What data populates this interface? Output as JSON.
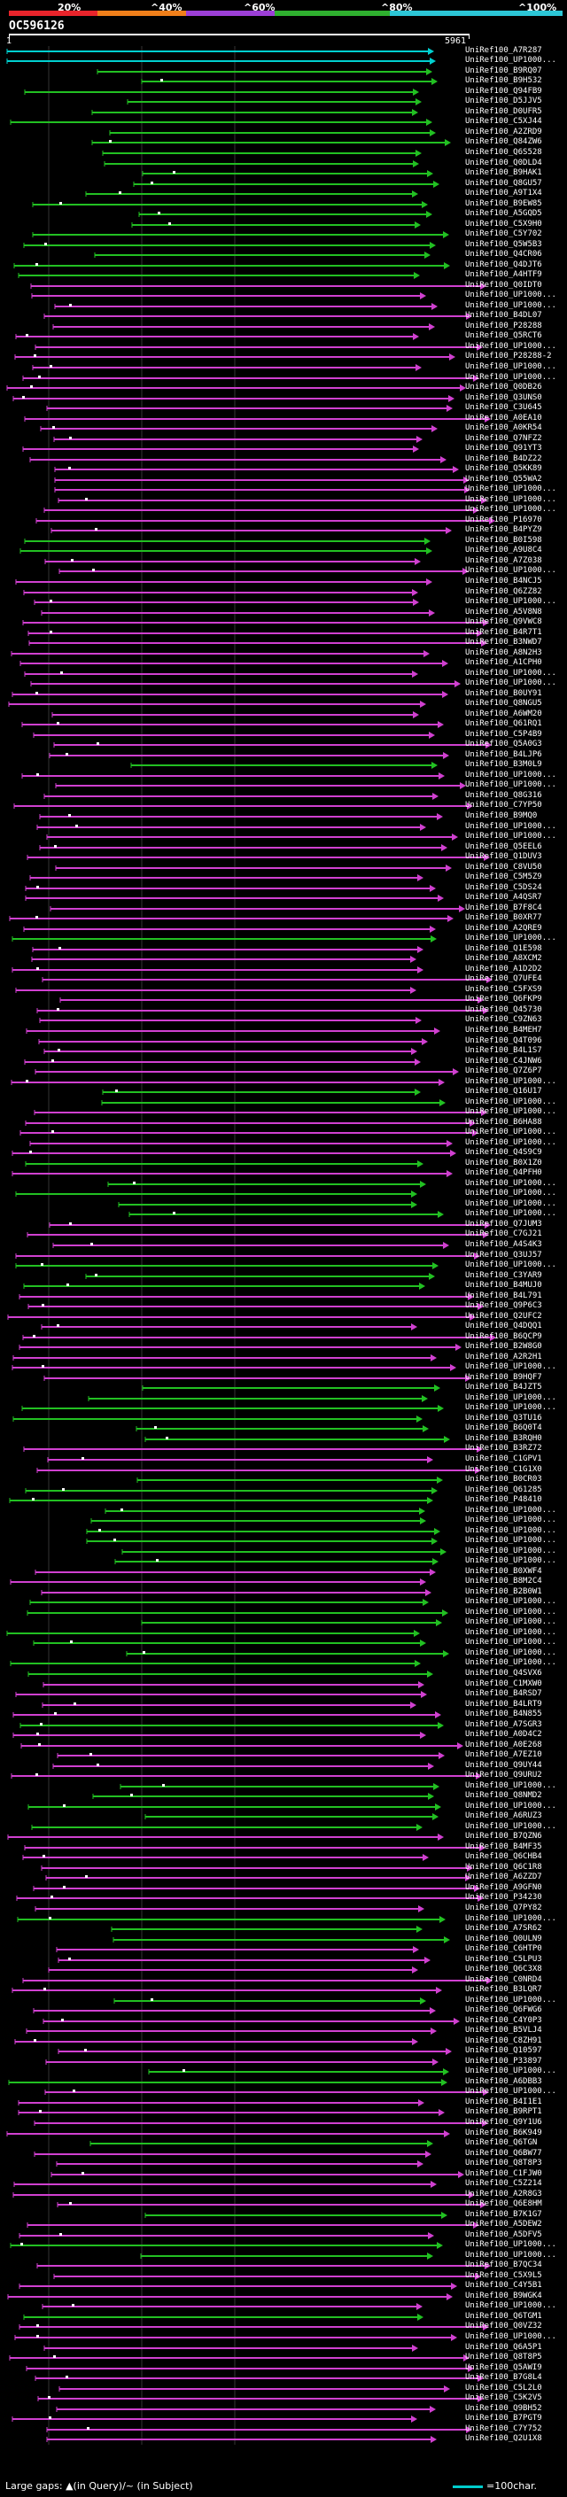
{
  "scale": {
    "labels": [
      "20%",
      "^40%",
      "^60%",
      "^80%",
      "^100%"
    ],
    "colors": [
      "#e8242b",
      "#f07f1a",
      "#9c3fd6",
      "#2fb02f",
      "#2cc6d6"
    ]
  },
  "query": {
    "title": "OC596126",
    "start": "1",
    "end": "5961"
  },
  "legend": {
    "left": "Large gaps: ▲(in Query)/~ (in Subject)",
    "right": "=100char."
  },
  "colors": {
    "cyan": "#00d0d0",
    "green": "#22c022",
    "magenta": "#d040d0",
    "gap": "#ffffff",
    "background": "#000000"
  },
  "hits": [
    {
      "name": "UniRef100_A7R287",
      "color": "cyan"
    },
    {
      "name": "UniRef100_UP1000...",
      "color": "cyan"
    },
    {
      "name": "UniRef100_B9RQ07",
      "color": "green"
    },
    {
      "name": "UniRef100_B9H532",
      "color": "green"
    },
    {
      "name": "UniRef100_Q94FB9",
      "color": "green"
    },
    {
      "name": "UniRef100_D5JJV5",
      "color": "green"
    },
    {
      "name": "UniRef100_D0UFR5",
      "color": "green"
    },
    {
      "name": "UniRef100_C5XJ44",
      "color": "green"
    },
    {
      "name": "UniRef100_A2ZRD9",
      "color": "green"
    },
    {
      "name": "UniRef100_Q84ZW6",
      "color": "green"
    },
    {
      "name": "UniRef100_Q6S528",
      "color": "green"
    },
    {
      "name": "UniRef100_Q0DLD4",
      "color": "green"
    },
    {
      "name": "UniRef100_B9HAK1",
      "color": "green"
    },
    {
      "name": "UniRef100_Q8GU57",
      "color": "green"
    },
    {
      "name": "UniRef100_A9T1X4",
      "color": "green"
    },
    {
      "name": "UniRef100_B9EW85",
      "color": "green"
    },
    {
      "name": "UniRef100_A5GQD5",
      "color": "green"
    },
    {
      "name": "UniRef100_C5X9H0",
      "color": "green"
    },
    {
      "name": "UniRef100_C5Y702",
      "color": "green"
    },
    {
      "name": "UniRef100_Q5W5B3",
      "color": "green"
    },
    {
      "name": "UniRef100_Q4CR06",
      "color": "green"
    },
    {
      "name": "UniRef100_Q4DJT6",
      "color": "green"
    },
    {
      "name": "UniRef100_A4HTF9",
      "color": "green"
    },
    {
      "name": "UniRef100_Q0IDT0",
      "color": "magenta"
    },
    {
      "name": "UniRef100_UP1000...",
      "color": "magenta"
    },
    {
      "name": "UniRef100_UP1000...",
      "color": "magenta"
    },
    {
      "name": "UniRef100_B4DL07",
      "color": "magenta"
    },
    {
      "name": "UniRef100_P28288",
      "color": "magenta"
    },
    {
      "name": "UniRef100_Q5RCT6",
      "color": "magenta"
    },
    {
      "name": "UniRef100_UP1000...",
      "color": "magenta"
    },
    {
      "name": "UniRef100_P28288-2",
      "color": "magenta"
    },
    {
      "name": "UniRef100_UP1000...",
      "color": "magenta"
    },
    {
      "name": "UniRef100_UP1000...",
      "color": "magenta"
    },
    {
      "name": "UniRef100_Q0DB26",
      "color": "magenta"
    },
    {
      "name": "UniRef100_Q3UNS0",
      "color": "magenta"
    },
    {
      "name": "UniRef100_C3U645",
      "color": "magenta"
    },
    {
      "name": "UniRef100_A0EA10",
      "color": "magenta"
    },
    {
      "name": "UniRef100_A0KR54",
      "color": "magenta"
    },
    {
      "name": "UniRef100_Q7NFZ2",
      "color": "magenta"
    },
    {
      "name": "UniRef100_Q91YT3",
      "color": "magenta"
    },
    {
      "name": "UniRef100_B4DZ22",
      "color": "magenta"
    },
    {
      "name": "UniRef100_Q5KK89",
      "color": "magenta"
    },
    {
      "name": "UniRef100_Q55WA2",
      "color": "magenta"
    },
    {
      "name": "UniRef100_UP1000...",
      "color": "magenta"
    },
    {
      "name": "UniRef100_UP1000...",
      "color": "magenta"
    },
    {
      "name": "UniRef100_UP1000...",
      "color": "magenta"
    },
    {
      "name": "UniRef100_P16970",
      "color": "magenta"
    },
    {
      "name": "UniRef100_B4PYZ9",
      "color": "magenta"
    },
    {
      "name": "UniRef100_B0I598",
      "color": "green"
    },
    {
      "name": "UniRef100_A9U8C4",
      "color": "green"
    },
    {
      "name": "UniRef100_A7Z038",
      "color": "magenta"
    },
    {
      "name": "UniRef100_UP1000...",
      "color": "magenta"
    },
    {
      "name": "UniRef100_B4NCJ5",
      "color": "magenta"
    },
    {
      "name": "UniRef100_Q6ZZ82",
      "color": "magenta"
    },
    {
      "name": "UniRef100_UP1000...",
      "color": "magenta"
    },
    {
      "name": "UniRef100_A5V8N8",
      "color": "magenta"
    },
    {
      "name": "UniRef100_Q9VWC8",
      "color": "magenta"
    },
    {
      "name": "UniRef100_B4R7T1",
      "color": "magenta"
    },
    {
      "name": "UniRef100_B3NWD7",
      "color": "magenta"
    },
    {
      "name": "UniRef100_A8N2H3",
      "color": "magenta"
    },
    {
      "name": "UniRef100_A1CPH0",
      "color": "magenta"
    },
    {
      "name": "UniRef100_UP1000...",
      "color": "magenta"
    },
    {
      "name": "UniRef100_UP1000...",
      "color": "magenta"
    },
    {
      "name": "UniRef100_B0UY91",
      "color": "magenta"
    },
    {
      "name": "UniRef100_Q8NGU5",
      "color": "magenta"
    },
    {
      "name": "UniRef100_A6WM20",
      "color": "magenta"
    },
    {
      "name": "UniRef100_Q61RQ1",
      "color": "magenta"
    },
    {
      "name": "UniRef100_C5P4B9",
      "color": "magenta"
    },
    {
      "name": "UniRef100_Q5A0G3",
      "color": "magenta"
    },
    {
      "name": "UniRef100_B4LJP6",
      "color": "magenta"
    },
    {
      "name": "UniRef100_B3M0L9",
      "color": "green"
    },
    {
      "name": "UniRef100_UP1000...",
      "color": "magenta"
    },
    {
      "name": "UniRef100_UP1000...",
      "color": "magenta"
    },
    {
      "name": "UniRef100_Q8G316",
      "color": "magenta"
    },
    {
      "name": "UniRef100_C7YP50",
      "color": "magenta"
    },
    {
      "name": "UniRef100_B9MQ0",
      "color": "magenta"
    },
    {
      "name": "UniRef100_UP1000...",
      "color": "magenta"
    },
    {
      "name": "UniRef100_UP1000...",
      "color": "magenta"
    },
    {
      "name": "UniRef100_Q5EEL6",
      "color": "magenta"
    },
    {
      "name": "UniRef100_Q1DUV3",
      "color": "magenta"
    },
    {
      "name": "UniRef100_C8VU50",
      "color": "magenta"
    },
    {
      "name": "UniRef100_C5M5Z9",
      "color": "magenta"
    },
    {
      "name": "UniRef100_C5DS24",
      "color": "magenta"
    },
    {
      "name": "UniRef100_A4QSR7",
      "color": "magenta"
    },
    {
      "name": "UniRef100_B7F8C4",
      "color": "magenta"
    },
    {
      "name": "UniRef100_B0XR77",
      "color": "magenta"
    },
    {
      "name": "UniRef100_A2QRE9",
      "color": "magenta"
    },
    {
      "name": "UniRef100_UP1000...",
      "color": "green"
    },
    {
      "name": "UniRef100_Q1E598",
      "color": "magenta"
    },
    {
      "name": "UniRef100_A8XCM2",
      "color": "magenta"
    },
    {
      "name": "UniRef100_A1D2D2",
      "color": "magenta"
    },
    {
      "name": "UniRef100_Q7UFE4",
      "color": "magenta"
    },
    {
      "name": "UniRef100_C5FXS9",
      "color": "magenta"
    },
    {
      "name": "UniRef100_Q6FKP9",
      "color": "magenta"
    },
    {
      "name": "UniRef100_Q45730",
      "color": "magenta"
    },
    {
      "name": "UniRef100_C9ZN63",
      "color": "magenta"
    },
    {
      "name": "UniRef100_B4MEH7",
      "color": "magenta"
    },
    {
      "name": "UniRef100_Q4T096",
      "color": "magenta"
    },
    {
      "name": "UniRef100_B4L1S7",
      "color": "magenta"
    },
    {
      "name": "UniRef100_C4JNW6",
      "color": "magenta"
    },
    {
      "name": "UniRef100_Q7Z6P7",
      "color": "magenta"
    },
    {
      "name": "UniRef100_UP1000...",
      "color": "magenta"
    },
    {
      "name": "UniRef100_Q16U17",
      "color": "green"
    },
    {
      "name": "UniRef100_UP1000...",
      "color": "green"
    },
    {
      "name": "UniRef100_UP1000...",
      "color": "magenta"
    },
    {
      "name": "UniRef100_B6HA88",
      "color": "magenta"
    },
    {
      "name": "UniRef100_UP1000...",
      "color": "magenta"
    },
    {
      "name": "UniRef100_UP1000...",
      "color": "magenta"
    },
    {
      "name": "UniRef100_Q4S9C9",
      "color": "magenta"
    },
    {
      "name": "UniRef100_B0X1Z0",
      "color": "green"
    },
    {
      "name": "UniRef100_Q4PFH0",
      "color": "magenta"
    },
    {
      "name": "UniRef100_UP1000...",
      "color": "green"
    },
    {
      "name": "UniRef100_UP1000...",
      "color": "green"
    },
    {
      "name": "UniRef100_UP1000...",
      "color": "green"
    },
    {
      "name": "UniRef100_UP1000...",
      "color": "green"
    },
    {
      "name": "UniRef100_Q7JUM3",
      "color": "magenta"
    },
    {
      "name": "UniRef100_C7GJ21",
      "color": "magenta"
    },
    {
      "name": "UniRef100_A4S4K3",
      "color": "magenta"
    },
    {
      "name": "UniRef100_Q3UJ57",
      "color": "magenta"
    },
    {
      "name": "UniRef100_UP1000...",
      "color": "green"
    },
    {
      "name": "UniRef100_C3YAR9",
      "color": "green"
    },
    {
      "name": "UniRef100_B4MUJ0",
      "color": "green"
    },
    {
      "name": "UniRef100_B4L791",
      "color": "magenta"
    },
    {
      "name": "UniRef100_Q9P6C3",
      "color": "magenta"
    },
    {
      "name": "UniRef100_Q2UFC2",
      "color": "magenta"
    },
    {
      "name": "UniRef100_Q4DQQ1",
      "color": "magenta"
    },
    {
      "name": "UniRef100_B6QCP9",
      "color": "magenta"
    },
    {
      "name": "UniRef100_B2W8G0",
      "color": "magenta"
    },
    {
      "name": "UniRef100_A2R2H1",
      "color": "magenta"
    },
    {
      "name": "UniRef100_UP1000...",
      "color": "magenta"
    },
    {
      "name": "UniRef100_B9HQF7",
      "color": "magenta"
    },
    {
      "name": "UniRef100_B4JZT5",
      "color": "green"
    },
    {
      "name": "UniRef100_UP1000...",
      "color": "green"
    },
    {
      "name": "UniRef100_UP1000...",
      "color": "green"
    },
    {
      "name": "UniRef100_Q3TU16",
      "color": "green"
    },
    {
      "name": "UniRef100_B6Q0T4",
      "color": "green"
    },
    {
      "name": "UniRef100_B3RQH0",
      "color": "green"
    },
    {
      "name": "UniRef100_B3RZ72",
      "color": "magenta"
    },
    {
      "name": "UniRef100_C1GPV1",
      "color": "magenta"
    },
    {
      "name": "UniRef100_C1G1X0",
      "color": "magenta"
    },
    {
      "name": "UniRef100_B0CR03",
      "color": "green"
    },
    {
      "name": "UniRef100_Q61285",
      "color": "green"
    },
    {
      "name": "UniRef100_P48410",
      "color": "green"
    },
    {
      "name": "UniRef100_UP1000...",
      "color": "green"
    },
    {
      "name": "UniRef100_UP1000...",
      "color": "green"
    },
    {
      "name": "UniRef100_UP1000...",
      "color": "green"
    },
    {
      "name": "UniRef100_UP1000...",
      "color": "green"
    },
    {
      "name": "UniRef100_UP1000...",
      "color": "green"
    },
    {
      "name": "UniRef100_UP1000...",
      "color": "green"
    },
    {
      "name": "UniRef100_B0XWF4",
      "color": "magenta"
    },
    {
      "name": "UniRef100_B8M2C4",
      "color": "magenta"
    },
    {
      "name": "UniRef100_B2B0W1",
      "color": "magenta"
    },
    {
      "name": "UniRef100_UP1000...",
      "color": "green"
    },
    {
      "name": "UniRef100_UP1000...",
      "color": "green"
    },
    {
      "name": "UniRef100_UP1000...",
      "color": "green"
    },
    {
      "name": "UniRef100_UP1000...",
      "color": "green"
    },
    {
      "name": "UniRef100_UP1000...",
      "color": "green"
    },
    {
      "name": "UniRef100_UP1000...",
      "color": "green"
    },
    {
      "name": "UniRef100_UP1000...",
      "color": "green"
    },
    {
      "name": "UniRef100_Q4SVX6",
      "color": "green"
    },
    {
      "name": "UniRef100_C1MXW0",
      "color": "magenta"
    },
    {
      "name": "UniRef100_B4RSD7",
      "color": "magenta"
    },
    {
      "name": "UniRef100_B4LRT9",
      "color": "magenta"
    },
    {
      "name": "UniRef100_B4N855",
      "color": "magenta"
    },
    {
      "name": "UniRef100_A7SGR3",
      "color": "green"
    },
    {
      "name": "UniRef100_A0D4C2",
      "color": "magenta"
    },
    {
      "name": "UniRef100_A0E268",
      "color": "magenta"
    },
    {
      "name": "UniRef100_A7EZ10",
      "color": "magenta"
    },
    {
      "name": "UniRef100_Q9UY44",
      "color": "magenta"
    },
    {
      "name": "UniRef100_Q9URU2",
      "color": "magenta"
    },
    {
      "name": "UniRef100_UP1000...",
      "color": "green"
    },
    {
      "name": "UniRef100_Q8NMD2",
      "color": "green"
    },
    {
      "name": "UniRef100_UP1000...",
      "color": "green"
    },
    {
      "name": "UniRef100_A6RUZ3",
      "color": "green"
    },
    {
      "name": "UniRef100_UP1000...",
      "color": "green"
    },
    {
      "name": "UniRef100_B7QZN6",
      "color": "magenta"
    },
    {
      "name": "UniRef100_B4MF35",
      "color": "magenta"
    },
    {
      "name": "UniRef100_Q6CHB4",
      "color": "magenta"
    },
    {
      "name": "UniRef100_Q6C1R8",
      "color": "magenta"
    },
    {
      "name": "UniRef100_A6ZZD7",
      "color": "magenta"
    },
    {
      "name": "UniRef100_A9GFN0",
      "color": "magenta"
    },
    {
      "name": "UniRef100_P34230",
      "color": "magenta"
    },
    {
      "name": "UniRef100_Q7PY82",
      "color": "magenta"
    },
    {
      "name": "UniRef100_UP1000...",
      "color": "green"
    },
    {
      "name": "UniRef100_A7SR62",
      "color": "green"
    },
    {
      "name": "UniRef100_Q0ULN9",
      "color": "green"
    },
    {
      "name": "UniRef100_C6HTP0",
      "color": "magenta"
    },
    {
      "name": "UniRef100_C5LPU3",
      "color": "magenta"
    },
    {
      "name": "UniRef100_Q6C3X8",
      "color": "magenta"
    },
    {
      "name": "UniRef100_C0NRD4",
      "color": "magenta"
    },
    {
      "name": "UniRef100_B3LQR7",
      "color": "magenta"
    },
    {
      "name": "UniRef100_UP1000...",
      "color": "green"
    },
    {
      "name": "UniRef100_Q6FWG6",
      "color": "magenta"
    },
    {
      "name": "UniRef100_C4Y0P3",
      "color": "magenta"
    },
    {
      "name": "UniRef100_B5VLJ4",
      "color": "magenta"
    },
    {
      "name": "UniRef100_C8ZH91",
      "color": "magenta"
    },
    {
      "name": "UniRef100_Q10597",
      "color": "magenta"
    },
    {
      "name": "UniRef100_P33897",
      "color": "magenta"
    },
    {
      "name": "UniRef100_UP1000...",
      "color": "green"
    },
    {
      "name": "UniRef100_A6DBB3",
      "color": "green"
    },
    {
      "name": "UniRef100_UP1000...",
      "color": "magenta"
    },
    {
      "name": "UniRef100_B4I1E1",
      "color": "magenta"
    },
    {
      "name": "UniRef100_B9RPT1",
      "color": "magenta"
    },
    {
      "name": "UniRef100_Q9Y1U6",
      "color": "magenta"
    },
    {
      "name": "UniRef100_B6K949",
      "color": "magenta"
    },
    {
      "name": "UniRef100_Q6TGN",
      "color": "green"
    },
    {
      "name": "UniRef100_Q6BW77",
      "color": "magenta"
    },
    {
      "name": "UniRef100_Q8T8P3",
      "color": "magenta"
    },
    {
      "name": "UniRef100_C1FJW0",
      "color": "magenta"
    },
    {
      "name": "UniRef100_C5Z214",
      "color": "magenta"
    },
    {
      "name": "UniRef100_A2R8G3",
      "color": "magenta"
    },
    {
      "name": "UniRef100_Q6E8HM",
      "color": "magenta"
    },
    {
      "name": "UniRef100_B7K1G7",
      "color": "green"
    },
    {
      "name": "UniRef100_A5DEW2",
      "color": "magenta"
    },
    {
      "name": "UniRef100_A5DFV5",
      "color": "magenta"
    },
    {
      "name": "UniRef100_UP1000...",
      "color": "green"
    },
    {
      "name": "UniRef100_UP1000...",
      "color": "green"
    },
    {
      "name": "UniRef100_B7QC34",
      "color": "magenta"
    },
    {
      "name": "UniRef100_C5X9L5",
      "color": "magenta"
    },
    {
      "name": "UniRef100_C4Y5B1",
      "color": "magenta"
    },
    {
      "name": "UniRef100_B9WGK4",
      "color": "magenta"
    },
    {
      "name": "UniRef100_UP1000...",
      "color": "magenta"
    },
    {
      "name": "UniRef100_Q6TGM1",
      "color": "green"
    },
    {
      "name": "UniRef100_Q0VZ32",
      "color": "magenta"
    },
    {
      "name": "UniRef100_UP1000...",
      "color": "magenta"
    },
    {
      "name": "UniRef100_Q6A5P1",
      "color": "magenta"
    },
    {
      "name": "UniRef100_Q8T8P5",
      "color": "magenta"
    },
    {
      "name": "UniRef100_Q5AWI9",
      "color": "magenta"
    },
    {
      "name": "UniRef100_B7G8L4",
      "color": "magenta"
    },
    {
      "name": "UniRef100_C5L2L0",
      "color": "magenta"
    },
    {
      "name": "UniRef100_C5K2V5",
      "color": "magenta"
    },
    {
      "name": "UniRef100_Q9BH52",
      "color": "magenta"
    },
    {
      "name": "UniRef100_B7PGT9",
      "color": "magenta"
    },
    {
      "name": "UniRef100_C7Y752",
      "color": "magenta"
    },
    {
      "name": "UniRef100_Q2U1X8",
      "color": "magenta"
    }
  ]
}
